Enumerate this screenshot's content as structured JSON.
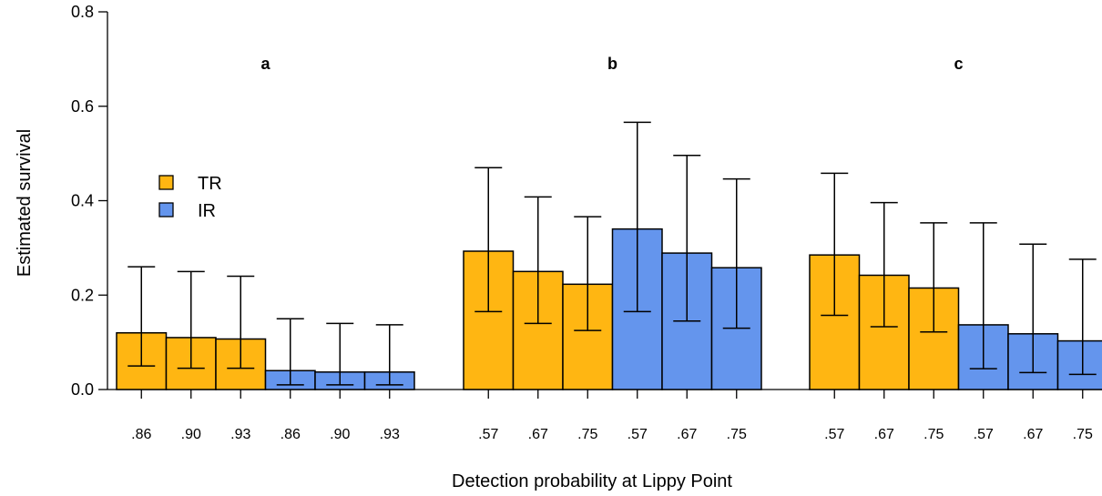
{
  "chart_data": {
    "type": "bar",
    "title": "",
    "xlabel": "Detection probability at Lippy Point",
    "ylabel": "Estimated survival",
    "ylim": [
      0,
      0.8
    ],
    "yticks": [
      "0.0",
      "0.2",
      "0.4",
      "0.6",
      "0.8"
    ],
    "grid": false,
    "legend": {
      "placement": "left",
      "entries": [
        {
          "name": "TR",
          "color": "#FFB612"
        },
        {
          "name": "IR",
          "color": "#6495ED"
        }
      ]
    },
    "colors": {
      "TR": "#FFB612",
      "IR": "#6495ED",
      "outline": "#000000"
    },
    "groups": [
      {
        "label": "a",
        "bars": [
          {
            "series": "TR",
            "category": ".86",
            "value": 0.12,
            "lower": 0.05,
            "upper": 0.26
          },
          {
            "series": "TR",
            "category": ".90",
            "value": 0.11,
            "lower": 0.045,
            "upper": 0.25
          },
          {
            "series": "TR",
            "category": ".93",
            "value": 0.107,
            "lower": 0.045,
            "upper": 0.24
          },
          {
            "series": "IR",
            "category": ".86",
            "value": 0.04,
            "lower": 0.01,
            "upper": 0.15
          },
          {
            "series": "IR",
            "category": ".90",
            "value": 0.037,
            "lower": 0.01,
            "upper": 0.14
          },
          {
            "series": "IR",
            "category": ".93",
            "value": 0.037,
            "lower": 0.01,
            "upper": 0.137
          }
        ]
      },
      {
        "label": "b",
        "bars": [
          {
            "series": "TR",
            "category": ".57",
            "value": 0.293,
            "lower": 0.165,
            "upper": 0.47
          },
          {
            "series": "TR",
            "category": ".67",
            "value": 0.25,
            "lower": 0.14,
            "upper": 0.408
          },
          {
            "series": "TR",
            "category": ".75",
            "value": 0.223,
            "lower": 0.125,
            "upper": 0.366
          },
          {
            "series": "IR",
            "category": ".57",
            "value": 0.34,
            "lower": 0.165,
            "upper": 0.566
          },
          {
            "series": "IR",
            "category": ".67",
            "value": 0.289,
            "lower": 0.145,
            "upper": 0.496
          },
          {
            "series": "IR",
            "category": ".75",
            "value": 0.258,
            "lower": 0.13,
            "upper": 0.446
          }
        ]
      },
      {
        "label": "c",
        "bars": [
          {
            "series": "TR",
            "category": ".57",
            "value": 0.285,
            "lower": 0.157,
            "upper": 0.458
          },
          {
            "series": "TR",
            "category": ".67",
            "value": 0.242,
            "lower": 0.133,
            "upper": 0.396
          },
          {
            "series": "TR",
            "category": ".75",
            "value": 0.215,
            "lower": 0.122,
            "upper": 0.353
          },
          {
            "series": "IR",
            "category": ".57",
            "value": 0.137,
            "lower": 0.044,
            "upper": 0.353
          },
          {
            "series": "IR",
            "category": ".67",
            "value": 0.118,
            "lower": 0.036,
            "upper": 0.308
          },
          {
            "series": "IR",
            "category": ".75",
            "value": 0.103,
            "lower": 0.032,
            "upper": 0.276
          }
        ]
      }
    ]
  }
}
